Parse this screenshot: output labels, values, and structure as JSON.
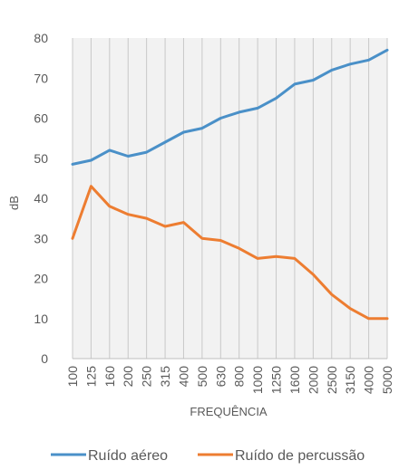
{
  "chart_data": {
    "type": "line",
    "title": "",
    "xlabel": "FREQUÊNCIA",
    "ylabel": "dB",
    "ylim": [
      0,
      80
    ],
    "yticks": [
      0,
      10,
      20,
      30,
      40,
      50,
      60,
      70,
      80
    ],
    "grid": "vertical",
    "legend_position": "bottom",
    "categories": [
      "100",
      "125",
      "160",
      "200",
      "250",
      "315",
      "400",
      "500",
      "630",
      "800",
      "1000",
      "1250",
      "1600",
      "2000",
      "2500",
      "3150",
      "4000",
      "5000"
    ],
    "series": [
      {
        "name": "Ruído aéreo",
        "color": "#4a90c8",
        "values": [
          48.5,
          49.5,
          52,
          50.5,
          51.5,
          54,
          56.5,
          57.5,
          60,
          61.5,
          62.5,
          65,
          68.5,
          69.5,
          72,
          73.5,
          74.5,
          77
        ]
      },
      {
        "name": "Ruído de percussão",
        "color": "#ed7d31",
        "values": [
          30,
          43,
          38,
          36,
          35,
          33,
          34,
          30,
          29.5,
          27.5,
          25,
          25.5,
          25,
          21,
          16,
          12.5,
          10,
          10
        ]
      }
    ]
  }
}
